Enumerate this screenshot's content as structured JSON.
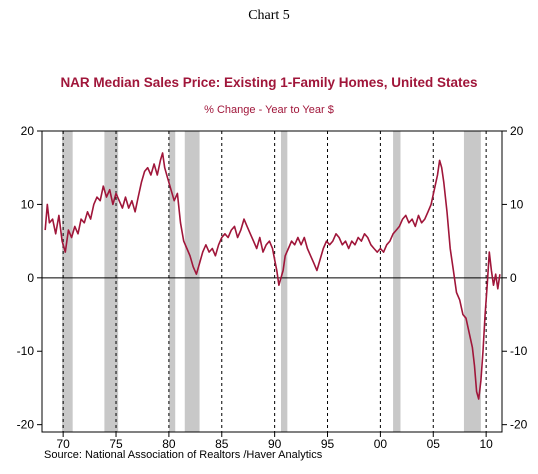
{
  "header": {
    "chart_label": "Chart 5"
  },
  "chart_data": {
    "type": "line",
    "title": "NAR Median Sales Price: Existing 1-Family Homes, United States",
    "subtitle": "% Change - Year to Year    $",
    "source": "Source:  National Association of Realtors /Haver Analytics",
    "xlim": [
      1968,
      2011.5
    ],
    "ylim": [
      -21,
      20
    ],
    "x_ticks": [
      1970,
      1975,
      1980,
      1985,
      1990,
      1995,
      2000,
      2005,
      2010
    ],
    "x_tick_labels": [
      "70",
      "75",
      "80",
      "85",
      "90",
      "95",
      "00",
      "05",
      "10"
    ],
    "y_ticks": [
      20,
      10,
      0,
      -10,
      -20
    ],
    "y_tick_labels": [
      "20",
      "10",
      "0",
      "-10",
      "-20"
    ],
    "grid": "vertical dashed at year ticks",
    "recessions": [
      [
        1969.9,
        1970.9
      ],
      [
        1973.9,
        1975.2
      ],
      [
        1980.0,
        1980.6
      ],
      [
        1981.5,
        1982.9
      ],
      [
        1990.6,
        1991.2
      ],
      [
        2001.2,
        2001.9
      ],
      [
        2007.9,
        2009.5
      ]
    ],
    "colors": {
      "line": "#a0163a",
      "recession": "#c8c8c8",
      "text_accent": "#a0163a"
    },
    "series": [
      {
        "values": [
          [
            1968.3,
            6.5
          ],
          [
            1968.5,
            10
          ],
          [
            1968.7,
            7.5
          ],
          [
            1969.0,
            8
          ],
          [
            1969.3,
            6
          ],
          [
            1969.6,
            8.5
          ],
          [
            1969.9,
            5
          ],
          [
            1970.2,
            3.5
          ],
          [
            1970.5,
            6.5
          ],
          [
            1970.8,
            5.5
          ],
          [
            1971.1,
            7
          ],
          [
            1971.4,
            6
          ],
          [
            1971.7,
            8
          ],
          [
            1972.0,
            7.5
          ],
          [
            1972.3,
            9
          ],
          [
            1972.6,
            8
          ],
          [
            1972.9,
            10
          ],
          [
            1973.2,
            11
          ],
          [
            1973.5,
            10.5
          ],
          [
            1973.8,
            12.5
          ],
          [
            1974.1,
            11
          ],
          [
            1974.4,
            12
          ],
          [
            1974.7,
            10
          ],
          [
            1975.0,
            11.5
          ],
          [
            1975.3,
            10.5
          ],
          [
            1975.6,
            9.5
          ],
          [
            1975.9,
            11
          ],
          [
            1976.2,
            9.5
          ],
          [
            1976.5,
            10.5
          ],
          [
            1976.8,
            9
          ],
          [
            1977.1,
            11
          ],
          [
            1977.4,
            13
          ],
          [
            1977.7,
            14.5
          ],
          [
            1978.0,
            15
          ],
          [
            1978.3,
            14
          ],
          [
            1978.6,
            15.5
          ],
          [
            1978.9,
            14
          ],
          [
            1979.2,
            16
          ],
          [
            1979.4,
            17
          ],
          [
            1979.6,
            15
          ],
          [
            1979.9,
            13.5
          ],
          [
            1980.2,
            12
          ],
          [
            1980.5,
            10.5
          ],
          [
            1980.8,
            11.5
          ],
          [
            1981.1,
            7.5
          ],
          [
            1981.4,
            5
          ],
          [
            1981.7,
            4
          ],
          [
            1982.0,
            3
          ],
          [
            1982.3,
            1.5
          ],
          [
            1982.6,
            0.5
          ],
          [
            1982.9,
            2
          ],
          [
            1983.2,
            3.5
          ],
          [
            1983.5,
            4.5
          ],
          [
            1983.8,
            3.5
          ],
          [
            1984.1,
            4
          ],
          [
            1984.4,
            3
          ],
          [
            1984.7,
            4.5
          ],
          [
            1985.0,
            5.5
          ],
          [
            1985.3,
            6
          ],
          [
            1985.6,
            5.5
          ],
          [
            1985.9,
            6.5
          ],
          [
            1986.2,
            7
          ],
          [
            1986.5,
            5.5
          ],
          [
            1986.8,
            6.5
          ],
          [
            1987.1,
            8
          ],
          [
            1987.4,
            7
          ],
          [
            1987.7,
            6
          ],
          [
            1988.0,
            5
          ],
          [
            1988.3,
            4
          ],
          [
            1988.6,
            5.5
          ],
          [
            1988.9,
            3.5
          ],
          [
            1989.2,
            4.5
          ],
          [
            1989.5,
            5
          ],
          [
            1989.8,
            4
          ],
          [
            1990.0,
            2.5
          ],
          [
            1990.2,
            1
          ],
          [
            1990.4,
            -1
          ],
          [
            1990.6,
            0
          ],
          [
            1990.8,
            1
          ],
          [
            1991.0,
            3
          ],
          [
            1991.3,
            4
          ],
          [
            1991.6,
            5
          ],
          [
            1991.9,
            4.5
          ],
          [
            1992.2,
            5.5
          ],
          [
            1992.5,
            4.5
          ],
          [
            1992.8,
            5.5
          ],
          [
            1993.1,
            4
          ],
          [
            1993.4,
            3
          ],
          [
            1993.7,
            2
          ],
          [
            1994.0,
            1
          ],
          [
            1994.3,
            2.5
          ],
          [
            1994.6,
            4
          ],
          [
            1994.9,
            5
          ],
          [
            1995.2,
            4.5
          ],
          [
            1995.5,
            5
          ],
          [
            1995.8,
            6
          ],
          [
            1996.1,
            5.5
          ],
          [
            1996.4,
            4.5
          ],
          [
            1996.7,
            5
          ],
          [
            1997.0,
            4
          ],
          [
            1997.3,
            5
          ],
          [
            1997.6,
            4.5
          ],
          [
            1997.9,
            5.5
          ],
          [
            1998.2,
            5
          ],
          [
            1998.5,
            6
          ],
          [
            1998.8,
            5.5
          ],
          [
            1999.1,
            4.5
          ],
          [
            1999.4,
            4
          ],
          [
            1999.7,
            3.5
          ],
          [
            2000.0,
            4
          ],
          [
            2000.3,
            3.5
          ],
          [
            2000.6,
            4.5
          ],
          [
            2000.9,
            5
          ],
          [
            2001.2,
            6
          ],
          [
            2001.5,
            6.5
          ],
          [
            2001.8,
            7
          ],
          [
            2002.1,
            8
          ],
          [
            2002.4,
            8.5
          ],
          [
            2002.7,
            7.5
          ],
          [
            2003.0,
            8
          ],
          [
            2003.3,
            7
          ],
          [
            2003.6,
            8.5
          ],
          [
            2003.9,
            7.5
          ],
          [
            2004.2,
            8
          ],
          [
            2004.5,
            9
          ],
          [
            2004.8,
            10
          ],
          [
            2005.1,
            12
          ],
          [
            2005.4,
            14
          ],
          [
            2005.6,
            16
          ],
          [
            2005.8,
            15
          ],
          [
            2006.0,
            13
          ],
          [
            2006.3,
            9
          ],
          [
            2006.6,
            4
          ],
          [
            2006.9,
            1
          ],
          [
            2007.2,
            -2
          ],
          [
            2007.5,
            -3
          ],
          [
            2007.8,
            -5
          ],
          [
            2008.1,
            -5.5
          ],
          [
            2008.4,
            -7.5
          ],
          [
            2008.7,
            -9.5
          ],
          [
            2008.9,
            -12
          ],
          [
            2009.1,
            -15.5
          ],
          [
            2009.3,
            -16.5
          ],
          [
            2009.5,
            -14
          ],
          [
            2009.7,
            -10
          ],
          [
            2009.9,
            -5
          ],
          [
            2010.1,
            -1
          ],
          [
            2010.3,
            3.5
          ],
          [
            2010.5,
            1
          ],
          [
            2010.7,
            -1
          ],
          [
            2010.9,
            0.5
          ],
          [
            2011.1,
            -1.5
          ],
          [
            2011.3,
            0.5
          ]
        ]
      }
    ]
  }
}
